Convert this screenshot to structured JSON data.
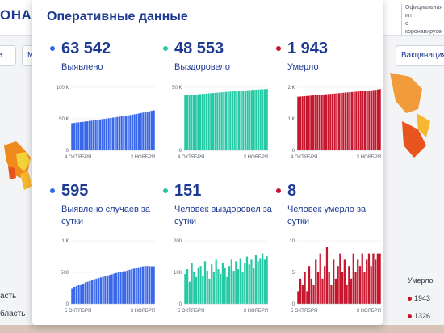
{
  "background": {
    "logo": "ОНАВИ",
    "info_line1": "Официальная ин",
    "info_line2": "о коронавирусе",
    "pill_left": "е",
    "pill_m": "М",
    "vaccination_button": "Вакцинация",
    "bottom_left_1": "асть",
    "bottom_left_2": "бласть",
    "bottom_right_header": "Умерло",
    "bottom_right_1": "1943",
    "bottom_right_2": "1326"
  },
  "panel": {
    "title": "Оперативные данные"
  },
  "colors": {
    "blue": "#3867e9",
    "teal": "#27c9a5",
    "red": "#c5162d",
    "heading": "#1f3a93"
  },
  "cards": [
    {
      "value": "63 542",
      "label": "Выявлено",
      "color": "#3867e9",
      "chart_data": {
        "type": "bar",
        "y_ticks": [
          "100 К",
          "50 К",
          "0"
        ],
        "ylim": [
          0,
          100000
        ],
        "x_labels": [
          "4 ОКТЯБРЯ",
          "3 НОЯБРЯ"
        ],
        "values": [
          43000,
          43500,
          44000,
          44400,
          44800,
          45200,
          45600,
          46000,
          46500,
          47000,
          47400,
          47900,
          48400,
          48900,
          49400,
          49900,
          50400,
          50900,
          51400,
          51900,
          52400,
          52900,
          53400,
          53900,
          54400,
          54900,
          55400,
          56000,
          56600,
          57200,
          57800,
          58500,
          59200,
          59900,
          60600,
          61400,
          62100,
          62800,
          63542
        ]
      }
    },
    {
      "value": "48 553",
      "label": "Выздоровело",
      "color": "#27c9a5",
      "chart_data": {
        "type": "bar",
        "y_ticks": [
          "50 К",
          "0"
        ],
        "ylim": [
          0,
          50000
        ],
        "x_labels": [
          "4 ОКТЯБРЯ",
          "3 НОЯБРЯ"
        ],
        "values": [
          43500,
          43650,
          43800,
          43950,
          44100,
          44250,
          44400,
          44550,
          44700,
          44850,
          45000,
          45150,
          45300,
          45450,
          45600,
          45750,
          45900,
          46050,
          46200,
          46350,
          46500,
          46600,
          46750,
          46900,
          47000,
          47150,
          47300,
          47400,
          47550,
          47700,
          47800,
          47950,
          48050,
          48150,
          48250,
          48350,
          48450,
          48500,
          48553
        ]
      }
    },
    {
      "value": "1 943",
      "label": "Умерло",
      "color": "#c5162d",
      "chart_data": {
        "type": "bar",
        "y_ticks": [
          "2 К",
          "1 К",
          "0"
        ],
        "ylim": [
          0,
          2000
        ],
        "x_labels": [
          "4 ОКТЯБРЯ",
          "3 НОЯБРЯ"
        ],
        "values": [
          1700,
          1706,
          1712,
          1718,
          1724,
          1730,
          1736,
          1742,
          1748,
          1754,
          1760,
          1766,
          1772,
          1778,
          1784,
          1790,
          1796,
          1802,
          1808,
          1814,
          1820,
          1826,
          1832,
          1838,
          1844,
          1850,
          1856,
          1862,
          1868,
          1874,
          1880,
          1886,
          1892,
          1898,
          1904,
          1912,
          1920,
          1930,
          1943
        ]
      }
    },
    {
      "value": "595",
      "label": "Выявлено случаев за сутки",
      "color": "#3867e9",
      "chart_data": {
        "type": "bar",
        "y_ticks": [
          "1 К",
          "500",
          "0"
        ],
        "ylim": [
          0,
          1000
        ],
        "x_labels": [
          "5 ОКТЯБРЯ",
          "3 НОЯБРЯ"
        ],
        "values": [
          250,
          270,
          280,
          300,
          310,
          320,
          340,
          350,
          360,
          380,
          390,
          400,
          410,
          420,
          430,
          440,
          450,
          460,
          470,
          480,
          490,
          500,
          510,
          515,
          520,
          530,
          540,
          550,
          560,
          570,
          580,
          590,
          595,
          600,
          600,
          598,
          596,
          595
        ]
      }
    },
    {
      "value": "151",
      "label": "Человек выздоровел за сутки",
      "color": "#27c9a5",
      "chart_data": {
        "type": "bar",
        "y_ticks": [
          "200",
          "100",
          "0"
        ],
        "ylim": [
          0,
          200
        ],
        "x_labels": [
          "5 ОКТЯБРЯ",
          "3 НОЯБРЯ"
        ],
        "values": [
          95,
          110,
          70,
          130,
          100,
          85,
          115,
          120,
          90,
          135,
          105,
          80,
          125,
          100,
          140,
          110,
          95,
          130,
          115,
          85,
          120,
          140,
          105,
          135,
          110,
          145,
          100,
          130,
          150,
          125,
          140,
          115,
          155,
          135,
          145,
          160,
          140,
          151
        ]
      }
    },
    {
      "value": "8",
      "label": "Человек умерло за сутки",
      "color": "#c5162d",
      "chart_data": {
        "type": "bar",
        "y_ticks": [
          "10",
          "5",
          "0"
        ],
        "ylim": [
          0,
          10
        ],
        "x_labels": [
          "5 ОКТЯБРЯ",
          "3 НОЯБРЯ"
        ],
        "values": [
          2,
          4,
          3,
          5,
          2,
          6,
          4,
          3,
          7,
          5,
          8,
          4,
          6,
          9,
          5,
          3,
          7,
          4,
          6,
          8,
          5,
          7,
          3,
          6,
          4,
          8,
          5,
          7,
          6,
          8,
          5,
          7,
          8,
          6,
          8,
          7,
          8,
          8
        ]
      }
    }
  ]
}
